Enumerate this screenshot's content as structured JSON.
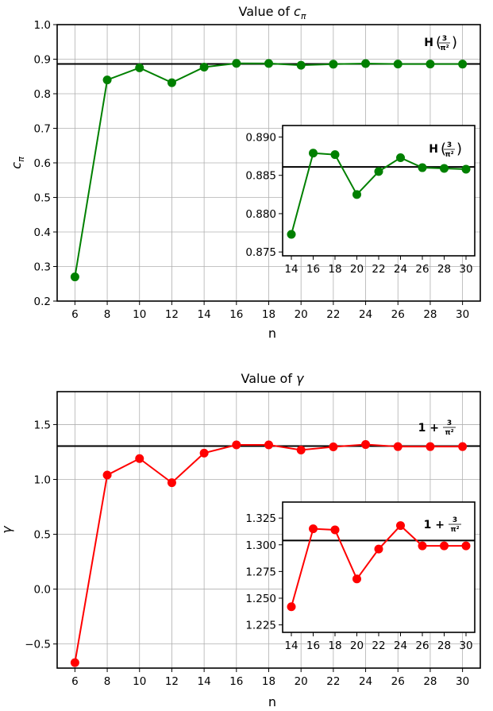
{
  "chart_data": [
    {
      "type": "line",
      "title_prefix": "Value of ",
      "title_symbol": "c",
      "title_subscript": "π",
      "xlabel": "n",
      "ylabel_symbol": "c",
      "ylabel_subscript": "π",
      "x": [
        6,
        8,
        10,
        12,
        14,
        16,
        18,
        20,
        22,
        24,
        26,
        28,
        30
      ],
      "series": [
        {
          "values": [
            0.27,
            0.84,
            0.875,
            0.832,
            0.877,
            0.888,
            0.8877,
            0.8825,
            0.8855,
            0.8873,
            0.886,
            0.8859,
            0.8858
          ],
          "color": "#008000"
        }
      ],
      "reference_line": {
        "value": 0.8861,
        "label_func": "H",
        "label_num": "3",
        "label_den": "π²",
        "color": "#000000"
      },
      "xlim": [
        4.9,
        31.1
      ],
      "ylim": [
        0.2,
        1.0
      ],
      "yticks": [
        "0.2",
        "0.3",
        "0.4",
        "0.5",
        "0.6",
        "0.7",
        "0.8",
        "0.9",
        "1.0"
      ],
      "xticks": [
        "6",
        "8",
        "10",
        "12",
        "14",
        "16",
        "18",
        "20",
        "22",
        "24",
        "26",
        "28",
        "30"
      ],
      "grid": true,
      "inset": {
        "x": [
          14,
          16,
          18,
          20,
          22,
          24,
          26,
          28,
          30
        ],
        "values": [
          0.8773,
          0.8879,
          0.8877,
          0.8825,
          0.8855,
          0.8873,
          0.886,
          0.8859,
          0.8858
        ],
        "xlim": [
          13.2,
          30.8
        ],
        "ylim": [
          0.8745,
          0.8915
        ],
        "yticks": [
          "0.875",
          "0.880",
          "0.885",
          "0.890"
        ],
        "xticks": [
          "14",
          "16",
          "18",
          "20",
          "22",
          "24",
          "26",
          "28",
          "30"
        ],
        "reference_value": 0.8861
      }
    },
    {
      "type": "line",
      "title_prefix": "Value of ",
      "title_symbol": "γ",
      "title_subscript": "",
      "xlabel": "n",
      "ylabel_symbol": "γ",
      "ylabel_subscript": "",
      "x": [
        6,
        8,
        10,
        12,
        14,
        16,
        18,
        20,
        22,
        24,
        26,
        28,
        30
      ],
      "series": [
        {
          "values": [
            -0.67,
            1.04,
            1.19,
            0.97,
            1.24,
            1.315,
            1.315,
            1.268,
            1.297,
            1.318,
            1.299,
            1.299,
            1.299
          ],
          "color": "#ff0000"
        }
      ],
      "reference_line": {
        "value": 1.304,
        "label_func": "1 +",
        "label_num": "3",
        "label_den": "π²",
        "color": "#000000"
      },
      "xlim": [
        4.9,
        31.1
      ],
      "ylim": [
        -0.72,
        1.8
      ],
      "yticks": [
        "−0.5",
        "0.0",
        "0.5",
        "1.0",
        "1.5"
      ],
      "ytick_values": [
        -0.5,
        0.0,
        0.5,
        1.0,
        1.5
      ],
      "xticks": [
        "6",
        "8",
        "10",
        "12",
        "14",
        "16",
        "18",
        "20",
        "22",
        "24",
        "26",
        "28",
        "30"
      ],
      "grid": true,
      "inset": {
        "x": [
          14,
          16,
          18,
          20,
          22,
          24,
          26,
          28,
          30
        ],
        "values": [
          1.242,
          1.315,
          1.314,
          1.268,
          1.296,
          1.318,
          1.299,
          1.299,
          1.299
        ],
        "xlim": [
          13.2,
          30.8
        ],
        "ylim": [
          1.218,
          1.34
        ],
        "yticks": [
          "1.225",
          "1.250",
          "1.275",
          "1.300",
          "1.325"
        ],
        "xticks": [
          "14",
          "16",
          "18",
          "20",
          "22",
          "24",
          "26",
          "28",
          "30"
        ],
        "reference_value": 1.304
      }
    }
  ]
}
